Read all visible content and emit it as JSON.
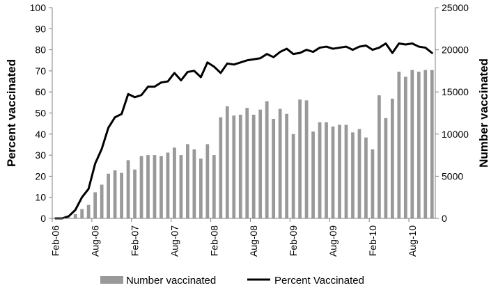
{
  "chart_data": {
    "type": "bar",
    "combo": "bar+line, dual y-axis",
    "x_tick_labels": [
      "Feb-06",
      "Aug-06",
      "Feb-07",
      "Aug-07",
      "Feb-08",
      "Aug-08",
      "Feb-09",
      "Aug-09",
      "Feb-10",
      "Aug-10"
    ],
    "left_axis": {
      "label": "Percent vaccinated",
      "ylim": [
        0,
        100
      ],
      "ticks": [
        0,
        10,
        20,
        30,
        40,
        50,
        60,
        70,
        80,
        90,
        100
      ]
    },
    "right_axis": {
      "label": "Number vaccinated",
      "ylim": [
        0,
        25000
      ],
      "ticks": [
        0,
        5000,
        10000,
        15000,
        20000,
        25000
      ]
    },
    "grid": false,
    "legend_position": "bottom",
    "series": [
      {
        "name": "Number vaccinated",
        "kind": "bar",
        "axis": "right",
        "color": "#999999",
        "values": [
          0,
          0,
          100,
          500,
          1100,
          1600,
          3100,
          4000,
          5300,
          5700,
          5400,
          6900,
          5800,
          7400,
          7500,
          7500,
          7400,
          7800,
          8400,
          7500,
          8800,
          8200,
          7100,
          8800,
          7500,
          12000,
          13300,
          12200,
          12300,
          13100,
          12300,
          12900,
          13900,
          11800,
          13000,
          12400,
          10000,
          14100,
          14000,
          10300,
          11400,
          11400,
          10900,
          11100,
          11100,
          10200,
          10600,
          9600,
          8200,
          14600,
          11900,
          14200,
          17400,
          16800,
          17600,
          17400,
          17600,
          17600
        ]
      },
      {
        "name": "Percent Vaccinated",
        "kind": "line",
        "axis": "left",
        "color": "#000000",
        "values": [
          0,
          0,
          1,
          4,
          10,
          14,
          26,
          33,
          43,
          48,
          49.5,
          59,
          57.5,
          58.5,
          62.5,
          62.5,
          64.5,
          65,
          69,
          65.5,
          69.5,
          70,
          67,
          74,
          72,
          69,
          73.5,
          73,
          74,
          75,
          75.5,
          76,
          78,
          76.5,
          79,
          80.5,
          78,
          78.5,
          80,
          79,
          81,
          81.5,
          80.5,
          81,
          81.5,
          80,
          81.5,
          82,
          80,
          81,
          83,
          78.5,
          83,
          82.5,
          83,
          81.5,
          81,
          78.5
        ]
      }
    ]
  }
}
